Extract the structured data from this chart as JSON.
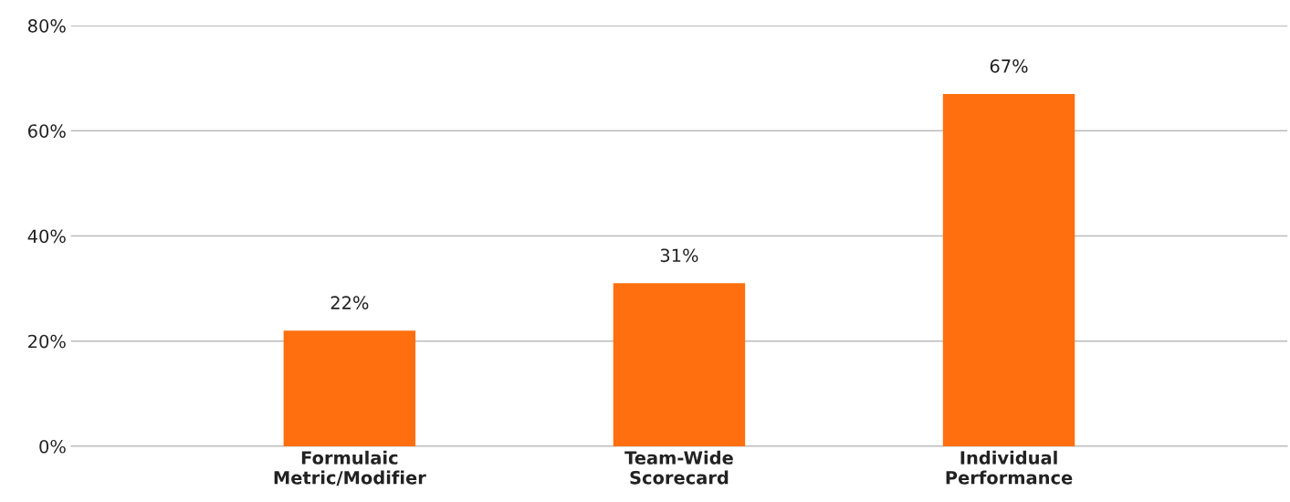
{
  "chart_data": {
    "type": "bar",
    "categories": [
      "Formulaic\nMetric/Modifier",
      "Team-Wide\nScorecard",
      "Individual\nPerformance"
    ],
    "values": [
      22,
      31,
      67
    ],
    "color": "#ff6f0f",
    "value_labels": [
      "22%",
      "31%",
      "67%"
    ],
    "ylim": [
      0,
      80
    ],
    "yticks": [
      {
        "value": 0,
        "label": "0%"
      },
      {
        "value": 20,
        "label": "20%"
      },
      {
        "value": 40,
        "label": "40%"
      },
      {
        "value": 60,
        "label": "60%"
      },
      {
        "value": 80,
        "label": "80%"
      }
    ],
    "grid": "y",
    "legend": false
  }
}
